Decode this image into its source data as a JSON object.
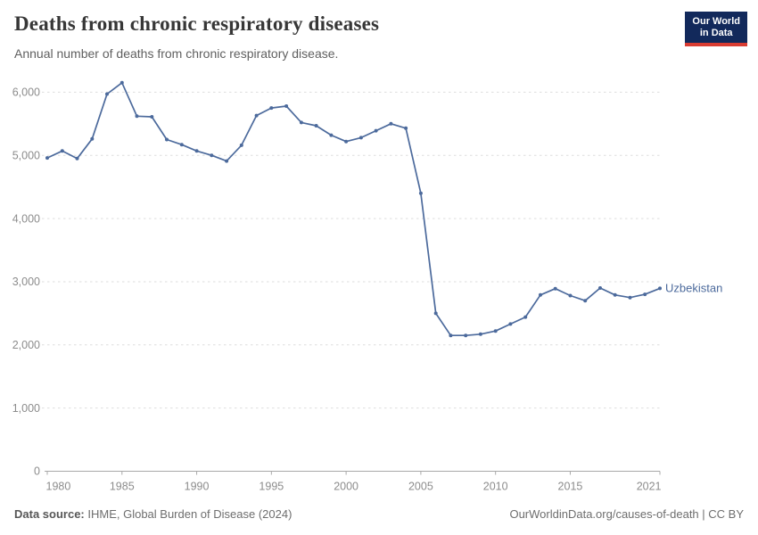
{
  "header": {
    "title": "Deaths from chronic respiratory diseases",
    "subtitle": "Annual number of deaths from chronic respiratory disease."
  },
  "logo": {
    "line1": "Our World",
    "line2": "in Data",
    "bg_color": "#12295b",
    "accent_color": "#d93c32"
  },
  "footer": {
    "source_label": "Data source:",
    "source_text": " IHME, Global Burden of Disease (2024)",
    "link_text": "OurWorldinData.org/causes-of-death | CC BY"
  },
  "chart_data": {
    "type": "line",
    "title": "Deaths from chronic respiratory diseases",
    "xlabel": "",
    "ylabel": "",
    "grid": "horizontal-dashed",
    "legend": "end-of-line-label",
    "ylim": [
      0,
      6400
    ],
    "x_ticks": [
      1980,
      1985,
      1990,
      1995,
      2000,
      2005,
      2010,
      2015,
      2021
    ],
    "y_ticks": [
      0,
      1000,
      2000,
      3000,
      4000,
      5000,
      6000
    ],
    "x": [
      1980,
      1981,
      1982,
      1983,
      1984,
      1985,
      1986,
      1987,
      1988,
      1989,
      1990,
      1991,
      1992,
      1993,
      1994,
      1995,
      1996,
      1997,
      1998,
      1999,
      2000,
      2001,
      2002,
      2003,
      2004,
      2005,
      2006,
      2007,
      2008,
      2009,
      2010,
      2011,
      2012,
      2013,
      2014,
      2015,
      2016,
      2017,
      2018,
      2019,
      2020,
      2021
    ],
    "series": [
      {
        "name": "Uzbekistan",
        "color": "#4c6a9c",
        "values": [
          4960,
          5070,
          4950,
          5260,
          5970,
          6150,
          5620,
          5610,
          5250,
          5170,
          5070,
          5000,
          4910,
          5160,
          5630,
          5750,
          5780,
          5520,
          5470,
          5320,
          5220,
          5280,
          5390,
          5500,
          5430,
          4400,
          2500,
          2150,
          2150,
          2170,
          2220,
          2330,
          2440,
          2790,
          2890,
          2780,
          2700,
          2900,
          2790,
          2750,
          2800,
          2895
        ]
      }
    ],
    "axis_colors": {
      "grid": "#dedede",
      "axis": "#a9a9a9",
      "tick_label": "#8c8c8c"
    }
  }
}
